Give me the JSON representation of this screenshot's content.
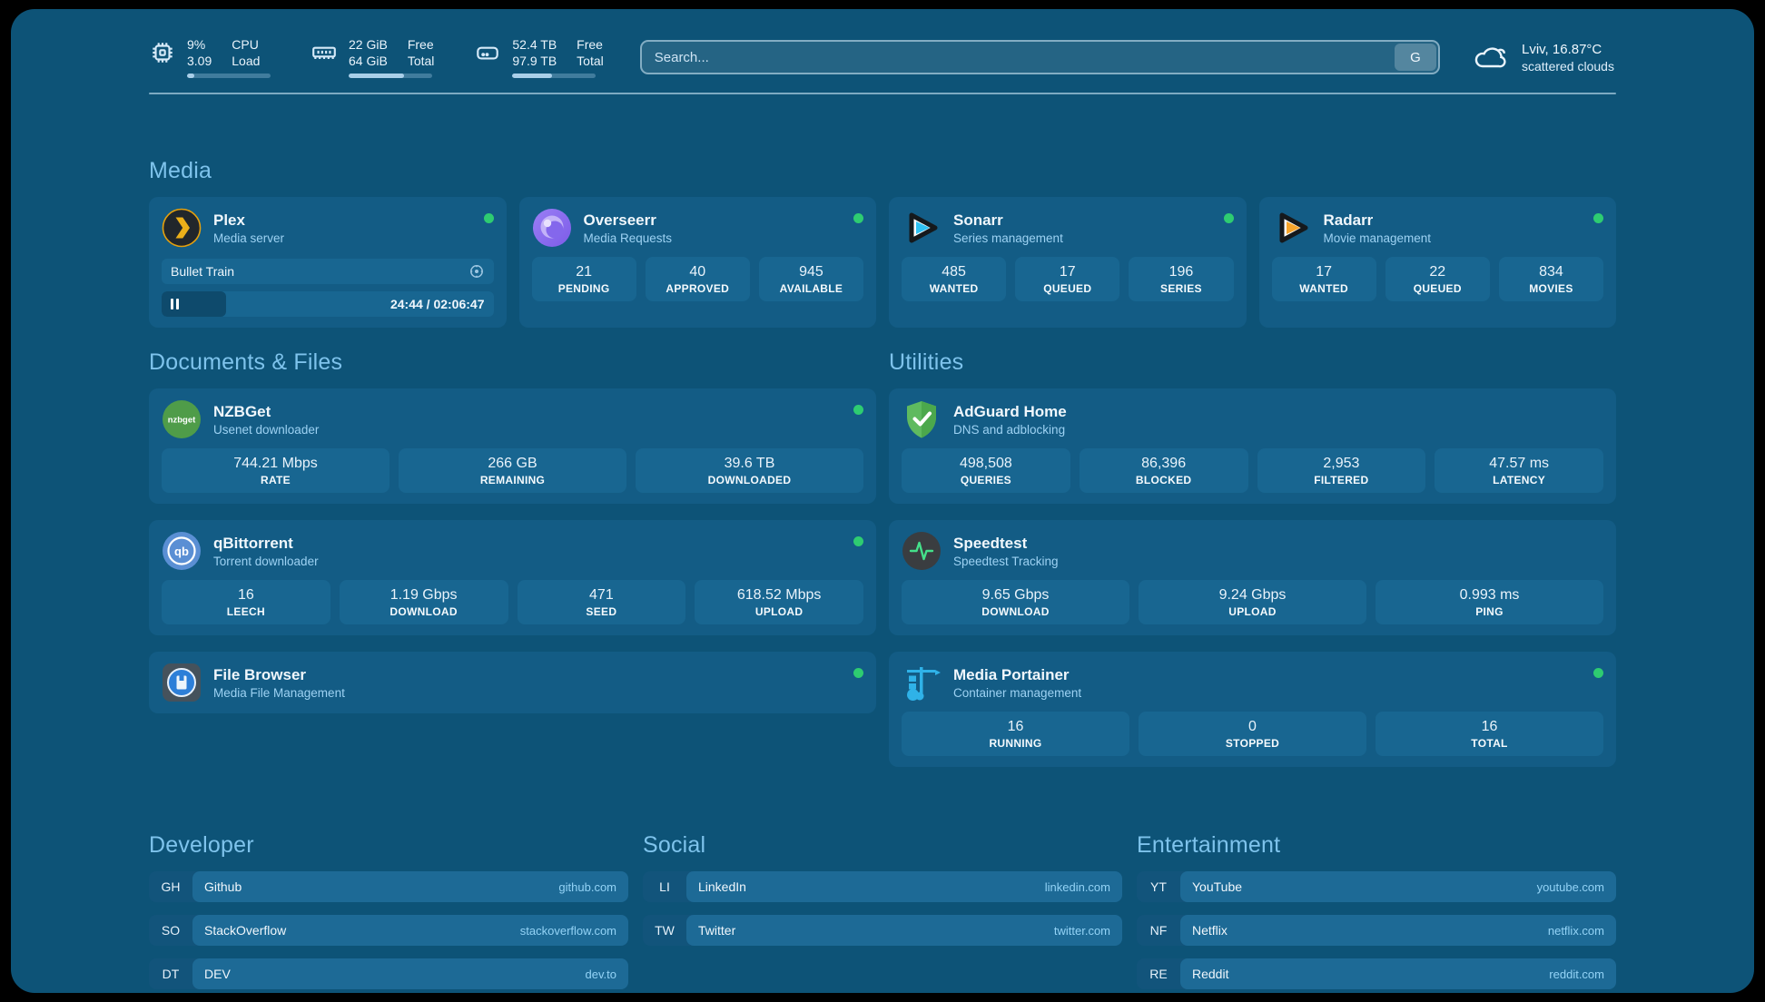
{
  "header": {
    "stats": [
      {
        "icon": "cpu-icon",
        "values": [
          "9%",
          "3.09"
        ],
        "labels": [
          "CPU",
          "Load"
        ],
        "progress_pct": 9
      },
      {
        "icon": "ram-icon",
        "values": [
          "22 GiB",
          "64 GiB"
        ],
        "labels": [
          "Free",
          "Total"
        ],
        "progress_pct": 66
      },
      {
        "icon": "disk-icon",
        "values": [
          "52.4 TB",
          "97.9 TB"
        ],
        "labels": [
          "Free",
          "Total"
        ],
        "progress_pct": 47
      }
    ],
    "search": {
      "placeholder": "Search...",
      "button_label": "G"
    },
    "weather": {
      "icon": "cloud-icon",
      "line1": "Lviv, 16.87°C",
      "line2": "scattered clouds"
    }
  },
  "media": {
    "title": "Media",
    "cards": [
      {
        "name": "Plex",
        "subtitle": "Media server",
        "status": "online",
        "now_playing": {
          "title": "Bullet Train",
          "time": "24:44 / 02:06:47",
          "progress_pct": 19.5
        }
      },
      {
        "name": "Overseerr",
        "subtitle": "Media Requests",
        "status": "online",
        "stats": [
          {
            "value": "21",
            "label": "PENDING"
          },
          {
            "value": "40",
            "label": "APPROVED"
          },
          {
            "value": "945",
            "label": "AVAILABLE"
          }
        ]
      },
      {
        "name": "Sonarr",
        "subtitle": "Series management",
        "status": "online",
        "stats": [
          {
            "value": "485",
            "label": "WANTED"
          },
          {
            "value": "17",
            "label": "QUEUED"
          },
          {
            "value": "196",
            "label": "SERIES"
          }
        ]
      },
      {
        "name": "Radarr",
        "subtitle": "Movie management",
        "status": "online",
        "stats": [
          {
            "value": "17",
            "label": "WANTED"
          },
          {
            "value": "22",
            "label": "QUEUED"
          },
          {
            "value": "834",
            "label": "MOVIES"
          }
        ]
      }
    ]
  },
  "documents": {
    "title": "Documents & Files",
    "cards": [
      {
        "name": "NZBGet",
        "subtitle": "Usenet downloader",
        "status": "online",
        "stats": [
          {
            "value": "744.21 Mbps",
            "label": "RATE"
          },
          {
            "value": "266 GB",
            "label": "REMAINING"
          },
          {
            "value": "39.6 TB",
            "label": "DOWNLOADED"
          }
        ]
      },
      {
        "name": "qBittorrent",
        "subtitle": "Torrent downloader",
        "status": "online",
        "stats": [
          {
            "value": "16",
            "label": "LEECH"
          },
          {
            "value": "1.19 Gbps",
            "label": "DOWNLOAD"
          },
          {
            "value": "471",
            "label": "SEED"
          },
          {
            "value": "618.52 Mbps",
            "label": "UPLOAD"
          }
        ]
      },
      {
        "name": "File Browser",
        "subtitle": "Media File Management",
        "status": "online"
      }
    ]
  },
  "utilities": {
    "title": "Utilities",
    "cards": [
      {
        "name": "AdGuard Home",
        "subtitle": "DNS and adblocking",
        "stats": [
          {
            "value": "498,508",
            "label": "QUERIES"
          },
          {
            "value": "86,396",
            "label": "BLOCKED"
          },
          {
            "value": "2,953",
            "label": "FILTERED"
          },
          {
            "value": "47.57 ms",
            "label": "LATENCY"
          }
        ]
      },
      {
        "name": "Speedtest",
        "subtitle": "Speedtest Tracking",
        "stats": [
          {
            "value": "9.65 Gbps",
            "label": "DOWNLOAD"
          },
          {
            "value": "9.24 Gbps",
            "label": "UPLOAD"
          },
          {
            "value": "0.993 ms",
            "label": "PING"
          }
        ]
      },
      {
        "name": "Media Portainer",
        "subtitle": "Container management",
        "status": "online",
        "stats": [
          {
            "value": "16",
            "label": "RUNNING"
          },
          {
            "value": "0",
            "label": "STOPPED"
          },
          {
            "value": "16",
            "label": "TOTAL"
          }
        ]
      }
    ]
  },
  "bookmarks": [
    {
      "title": "Developer",
      "links": [
        {
          "abbr": "GH",
          "name": "Github",
          "url": "github.com"
        },
        {
          "abbr": "SO",
          "name": "StackOverflow",
          "url": "stackoverflow.com"
        },
        {
          "abbr": "DT",
          "name": "DEV",
          "url": "dev.to"
        }
      ]
    },
    {
      "title": "Social",
      "links": [
        {
          "abbr": "LI",
          "name": "LinkedIn",
          "url": "linkedin.com"
        },
        {
          "abbr": "TW",
          "name": "Twitter",
          "url": "twitter.com"
        }
      ]
    },
    {
      "title": "Entertainment",
      "links": [
        {
          "abbr": "YT",
          "name": "YouTube",
          "url": "youtube.com"
        },
        {
          "abbr": "NF",
          "name": "Netflix",
          "url": "netflix.com"
        },
        {
          "abbr": "RE",
          "name": "Reddit",
          "url": "reddit.com"
        }
      ]
    }
  ],
  "colors": {
    "status_green": "#2ECC71",
    "accent": "#7EC3EC",
    "card": "#135C85",
    "tile": "#186691"
  }
}
